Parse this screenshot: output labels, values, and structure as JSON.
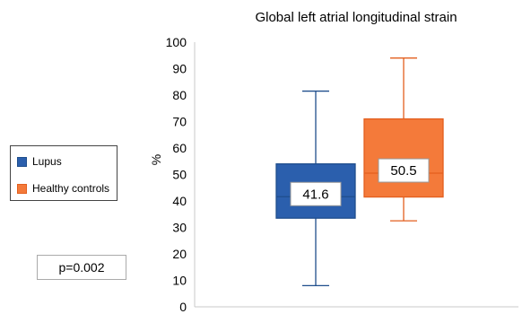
{
  "chart_data": {
    "type": "boxplot",
    "title": "Global left atrial longitudinal strain",
    "xlabel": "",
    "ylabel": "%",
    "ylim": [
      0,
      100
    ],
    "yticks": [
      0,
      10,
      20,
      30,
      40,
      50,
      60,
      70,
      80,
      90,
      100
    ],
    "grid": false,
    "legend_position": "left",
    "series": [
      {
        "name": "Lupus",
        "color": "#2b5fad",
        "edge": "#1f4e8c",
        "min": 8,
        "q1": 33.5,
        "median": 41.6,
        "q3": 54,
        "max": 81.5,
        "label": "41.6"
      },
      {
        "name": "Healthy controls",
        "color": "#f47a3a",
        "edge": "#e35f1e",
        "min": 32.5,
        "q1": 41.5,
        "median": 50.5,
        "q3": 71,
        "max": 94,
        "label": "50.5"
      }
    ],
    "annotation": "p=0.002"
  }
}
